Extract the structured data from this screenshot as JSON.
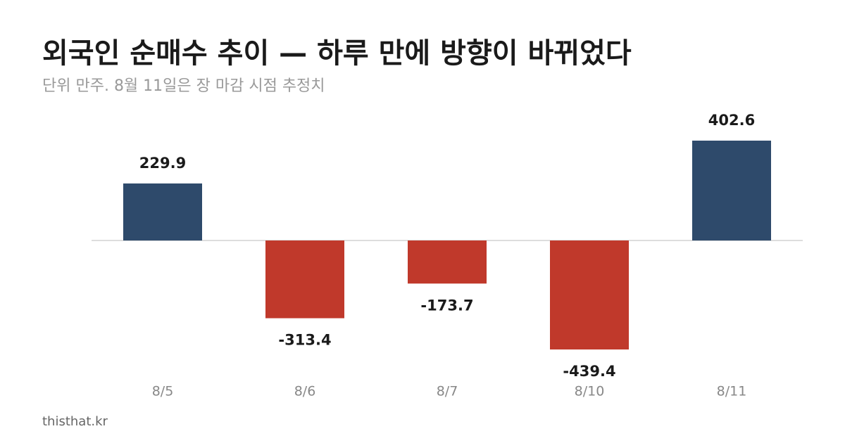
{
  "chart_data": {
    "type": "bar",
    "title": "외국인 순매수 추이 — 하루 만에 방향이 바뀌었다",
    "subtitle": "단위 만주. 8월 11일은 장 마감 시점 추정치",
    "categories": [
      "8/5",
      "8/6",
      "8/7",
      "8/10",
      "8/11"
    ],
    "values": [
      229.9,
      -313.4,
      -173.7,
      -439.4,
      402.6
    ],
    "colors": [
      "#2e4a6b",
      "#c0392b",
      "#c0392b",
      "#c0392b",
      "#2e4a6b"
    ],
    "source": "thisthat.kr"
  }
}
